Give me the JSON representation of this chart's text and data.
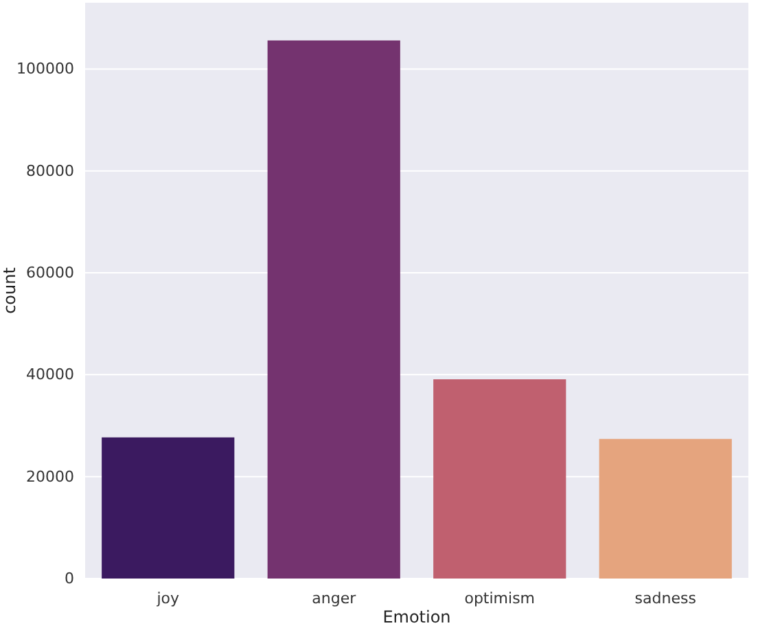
{
  "chart_data": {
    "type": "bar",
    "xlabel": "Emotion",
    "ylabel": "count",
    "categories": [
      "joy",
      "anger",
      "optimism",
      "sadness"
    ],
    "values": [
      27700,
      105600,
      39100,
      27400
    ],
    "colors": [
      "#3b1a60",
      "#74336f",
      "#c0606f",
      "#e5a47e"
    ],
    "ylim": [
      0,
      113000
    ],
    "yticks": [
      0,
      20000,
      40000,
      60000,
      80000,
      100000
    ],
    "grid": "y"
  }
}
